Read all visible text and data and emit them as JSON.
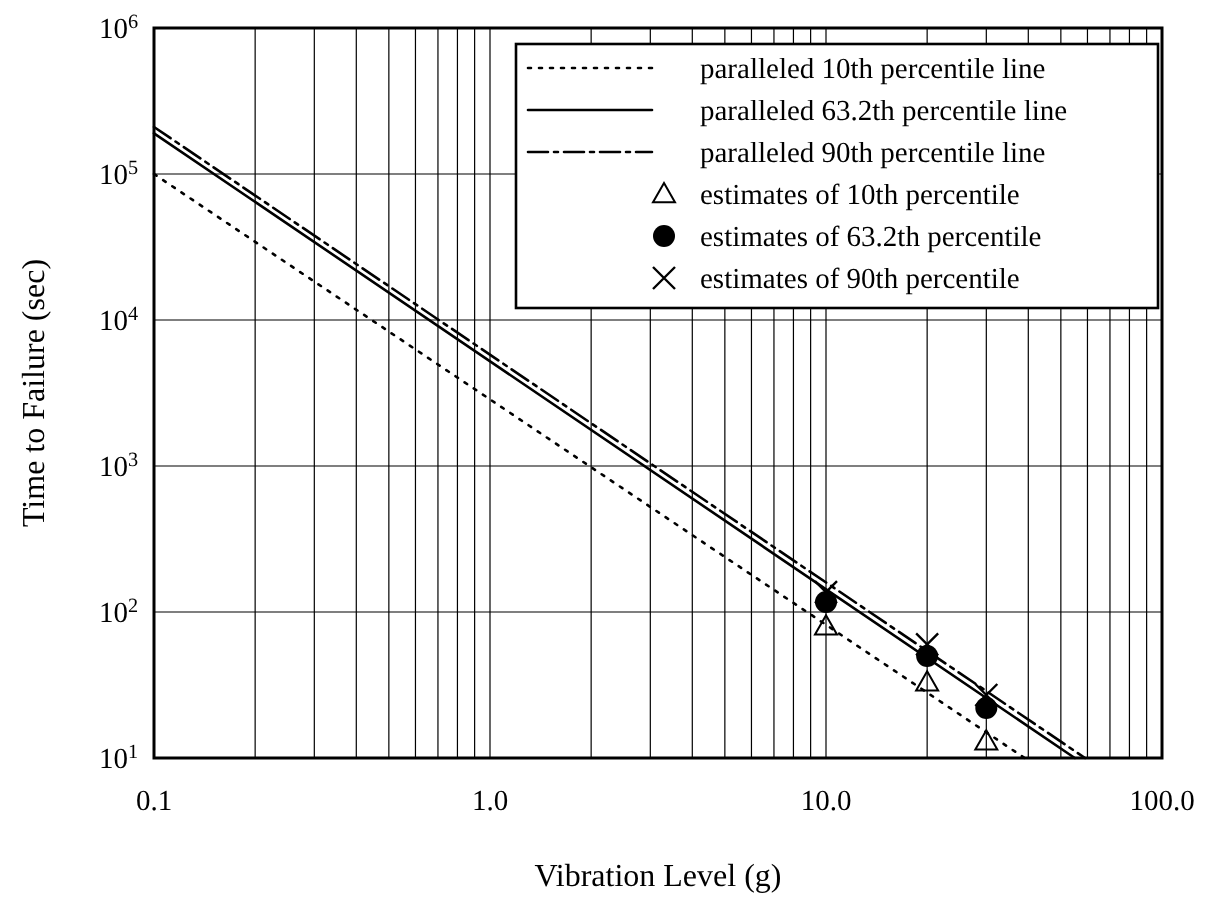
{
  "chart_data": {
    "type": "line",
    "xlabel": "Vibration Level (g)",
    "ylabel": "Time to Failure (sec)",
    "log": "xy",
    "grid": true,
    "legend": "top right",
    "xlim": [
      0.1,
      100
    ],
    "ylim": [
      10,
      1000000
    ],
    "xticks": [
      {
        "value": 0.1,
        "label": "0.1"
      },
      {
        "value": 0.2,
        "label": null
      },
      {
        "value": 0.3,
        "label": null
      },
      {
        "value": 0.4,
        "label": null
      },
      {
        "value": 0.5,
        "label": null
      },
      {
        "value": 0.6,
        "label": null
      },
      {
        "value": 0.7,
        "label": null
      },
      {
        "value": 0.8,
        "label": null
      },
      {
        "value": 0.9,
        "label": null
      },
      {
        "value": 1,
        "label": "1.0"
      },
      {
        "value": 2,
        "label": null
      },
      {
        "value": 3,
        "label": null
      },
      {
        "value": 4,
        "label": null
      },
      {
        "value": 5,
        "label": null
      },
      {
        "value": 6,
        "label": null
      },
      {
        "value": 7,
        "label": null
      },
      {
        "value": 8,
        "label": null
      },
      {
        "value": 9,
        "label": null
      },
      {
        "value": 10,
        "label": "10.0"
      },
      {
        "value": 20,
        "label": null
      },
      {
        "value": 30,
        "label": null
      },
      {
        "value": 40,
        "label": null
      },
      {
        "value": 50,
        "label": null
      },
      {
        "value": 60,
        "label": null
      },
      {
        "value": 70,
        "label": null
      },
      {
        "value": 80,
        "label": null
      },
      {
        "value": 90,
        "label": null
      },
      {
        "value": 100,
        "label": "100.0"
      }
    ],
    "yticks": [
      {
        "value": 10,
        "label": "10$^{1}$"
      },
      {
        "value": 100,
        "label": "10$^{2}$"
      },
      {
        "value": 1000,
        "label": "10$^{3}$"
      },
      {
        "value": 10000,
        "label": "10$^{4}$"
      },
      {
        "value": 100000,
        "label": "10$^{5}$"
      },
      {
        "value": 1000000,
        "label": "10$^{6}$"
      }
    ],
    "series": [
      {
        "name": "paralleled 10th percentile line",
        "type": "line",
        "line_style": "dotted",
        "marker": "none",
        "color": "#000000",
        "x": [
          0.1,
          39
        ],
        "values": [
          100000,
          10
        ]
      },
      {
        "name": "paralleled 63.2th percentile line",
        "type": "line",
        "line_style": "solid",
        "marker": "none",
        "color": "#000000",
        "x": [
          0.1,
          55
        ],
        "values": [
          190000,
          10
        ]
      },
      {
        "name": "paralleled 90th percentile line",
        "type": "line",
        "line_style": "dashed",
        "marker": "none",
        "color": "#000000",
        "x": [
          0.1,
          59
        ],
        "values": [
          210000,
          10
        ]
      },
      {
        "name": "estimates of 10th percentile",
        "type": "scatter",
        "marker": "triangle",
        "color": "#000000",
        "x": [
          10,
          20,
          30
        ],
        "values": [
          80,
          33,
          13
        ]
      },
      {
        "name": "estimates of 63.2th percentile",
        "type": "scatter",
        "marker": "circle",
        "color": "#000000",
        "x": [
          10,
          20,
          30
        ],
        "values": [
          117,
          50,
          22
        ]
      },
      {
        "name": "estimates of 90th percentile",
        "type": "scatter",
        "marker": "cross",
        "color": "#000000",
        "x": [
          10,
          20,
          30
        ],
        "values": [
          137,
          60,
          27
        ]
      }
    ]
  }
}
